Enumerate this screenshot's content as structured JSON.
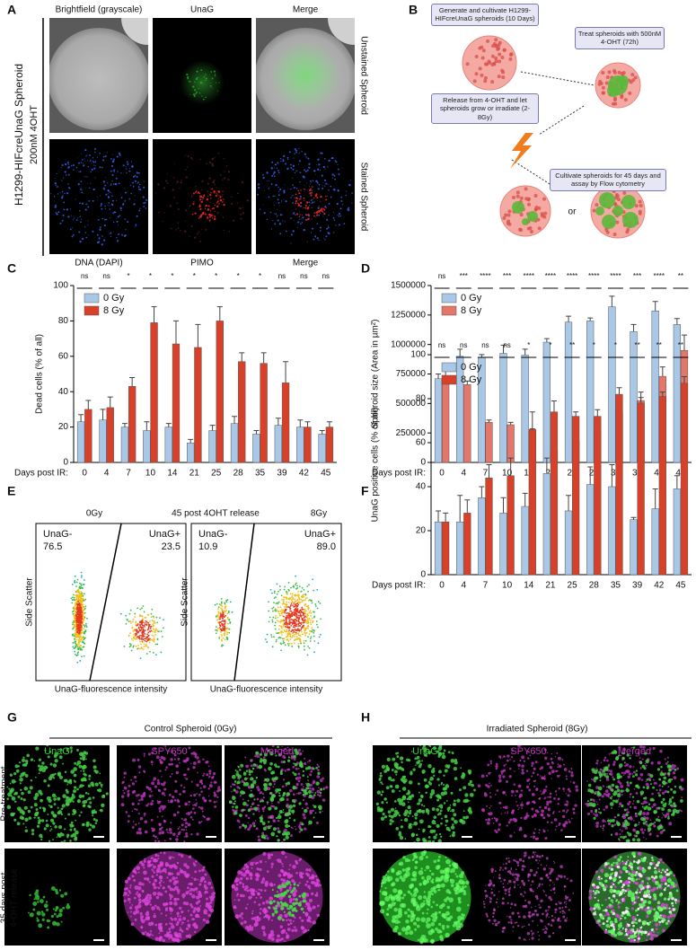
{
  "panels": {
    "A": {
      "label": "A",
      "row_label": "H1299-HIFcreUnaG Spheroid",
      "row_sublabel": "200nM 4OHT",
      "col_top": [
        "Brightfield (grayscale)",
        "UnaG",
        "Merge"
      ],
      "col_bottom": [
        "DNA (DAPI)",
        "PIMO",
        "Merge"
      ],
      "side": [
        "Unstained Spheroid",
        "Stained Spheroid"
      ]
    },
    "B": {
      "label": "B",
      "steps": [
        "Generate and cultivate H1299-HIFcreUnaG spheroids (10 Days)",
        "Treat spheroids with 500nM 4-OHT (72h)",
        "Release from 4-OHT and let spheroids grow or irradiate (2-8Gy)",
        "Cultivate spheroids for 45 days and assay by Flow cytometry"
      ],
      "or": "or"
    },
    "C": {
      "label": "C"
    },
    "D": {
      "label": "D"
    },
    "E": {
      "label": "E",
      "title": "45 post 4OHT release",
      "left_title": "0Gy",
      "right_title": "8Gy",
      "ylabel": "Side Scatter",
      "xlabel": "UnaG-fluorescence intensity",
      "left_gates": [
        "UnaG-",
        "76.5",
        "UnaG+",
        "23.5"
      ],
      "right_gates": [
        "UnaG-",
        "10.9",
        "UnaG+",
        "89.0"
      ]
    },
    "F": {
      "label": "F"
    },
    "G": {
      "label": "G",
      "title": "Control Spheroid (0Gy)",
      "cols": [
        "UnaG",
        "SPY650",
        "Merged"
      ],
      "rows": [
        "Pre-treatment",
        "35 days post",
        "4-OHT release"
      ]
    },
    "H": {
      "label": "H",
      "title": "Irradiated Spheroid (8Gy)",
      "cols": [
        "UnaG",
        "SPY650",
        "Merged"
      ]
    }
  },
  "chart_data": [
    {
      "type": "bar",
      "ylabel": "Dead cells (% of all)",
      "xlabel": "Days post IR:",
      "categories": [
        "0",
        "4",
        "7",
        "10",
        "14",
        "21",
        "25",
        "28",
        "35",
        "39",
        "42",
        "45"
      ],
      "significance": [
        "ns",
        "ns",
        "*",
        "*",
        "*",
        "*",
        "*",
        "*",
        "*",
        "ns",
        "ns",
        "ns"
      ],
      "series": [
        {
          "name": "0 Gy",
          "color": "#a9c8e8",
          "values": [
            23,
            24,
            20,
            18,
            20,
            11,
            18,
            22,
            16,
            21,
            20,
            16
          ],
          "errors": [
            4,
            6,
            2,
            5,
            2,
            2,
            3,
            4,
            2,
            4,
            4,
            2
          ]
        },
        {
          "name": "8 Gy",
          "color": "#d9402a",
          "values": [
            30,
            31,
            43,
            79,
            67,
            65,
            80,
            57,
            56,
            45,
            20,
            20
          ],
          "errors": [
            5,
            6,
            5,
            9,
            13,
            13,
            8,
            5,
            6,
            12,
            3,
            3
          ]
        }
      ],
      "ylim": [
        0,
        100
      ],
      "yticks": [
        0,
        20,
        40,
        60,
        80,
        100
      ],
      "legend": "upper left"
    },
    {
      "type": "bar",
      "ylabel": "Spheroid size (Area in µm²)",
      "xlabel": "Days post IR:",
      "categories": [
        "0",
        "4",
        "7",
        "10",
        "14",
        "21",
        "25",
        "28",
        "35",
        "39",
        "42",
        "45"
      ],
      "significance": [
        "ns",
        "***",
        "****",
        "***",
        "****",
        "****",
        "****",
        "****",
        "****",
        "***",
        "****",
        "**"
      ],
      "series": [
        {
          "name": "0 Gy",
          "color": "#a9c8e8",
          "values": [
            710000,
            900000,
            890000,
            925000,
            910000,
            1020000,
            1190000,
            1200000,
            1320000,
            1110000,
            1285000,
            1170000
          ],
          "errors": [
            40000,
            60000,
            25000,
            70000,
            50000,
            30000,
            50000,
            25000,
            90000,
            60000,
            80000,
            50000
          ]
        },
        {
          "name": "8 Gy",
          "color": "#e4766a",
          "values": [
            725000,
            660000,
            340000,
            320000,
            270000,
            100000,
            180000,
            275000,
            425000,
            525000,
            730000,
            950000
          ],
          "errors": [
            50000,
            30000,
            20000,
            20000,
            15000,
            10000,
            15000,
            10000,
            35000,
            25000,
            80000,
            130000
          ]
        }
      ],
      "ylim": [
        0,
        1500000
      ],
      "yticks": [
        0,
        250000,
        500000,
        750000,
        1000000,
        1250000,
        1500000
      ],
      "legend": "upper left"
    },
    {
      "type": "bar",
      "ylabel": "UnaG positive cells (% of all)",
      "xlabel": "Days post IR:",
      "categories": [
        "0",
        "4",
        "7",
        "10",
        "14",
        "21",
        "25",
        "28",
        "35",
        "39",
        "42",
        "45"
      ],
      "significance": [
        "ns",
        "ns",
        "ns",
        "ns",
        "*",
        "*",
        "**",
        "*",
        "*",
        "**",
        "**",
        "**"
      ],
      "series": [
        {
          "name": "0 Gy",
          "color": "#a9c8e8",
          "values": [
            24,
            24,
            35,
            28,
            31,
            46,
            29,
            41,
            40,
            25,
            30,
            39
          ],
          "errors": [
            5,
            12,
            5,
            7,
            6,
            7,
            7,
            8,
            10,
            1,
            9,
            6
          ]
        },
        {
          "name": "8 Gy",
          "color": "#d9402a",
          "values": [
            24,
            28,
            44,
            45,
            66,
            74,
            72,
            72,
            82,
            78,
            81,
            87
          ],
          "errors": [
            4,
            6,
            6,
            8,
            8,
            5,
            2,
            3,
            3,
            5,
            2,
            3
          ]
        }
      ],
      "ylim": [
        0,
        100
      ],
      "yticks": [
        0,
        20,
        40,
        60,
        80,
        100
      ],
      "legend": "upper left"
    }
  ]
}
